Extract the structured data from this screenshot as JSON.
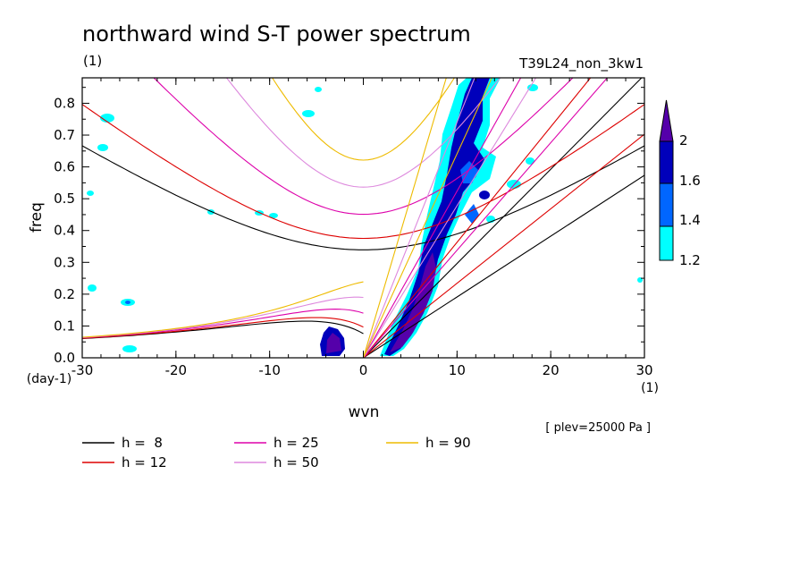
{
  "chart_data": {
    "type": "line",
    "title": "northward wind S-T power spectrum",
    "subtitle_left": "(1)",
    "subtitle_right": "T39L24_non_3kw1",
    "xlabel": "wvn",
    "ylabel": "freq",
    "x_unit": "(1)",
    "y_unit": "(day-1)",
    "xlim": [
      -30,
      30
    ],
    "ylim": [
      0,
      0.88
    ],
    "xticks": [
      -30,
      -20,
      -10,
      0,
      10,
      20,
      30
    ],
    "xtick_labels": [
      "-30",
      "-20",
      "-10",
      "0",
      "10",
      "20",
      "30"
    ],
    "yticks": [
      0,
      0.1,
      0.2,
      0.3,
      0.4,
      0.5,
      0.6,
      0.7,
      0.8
    ],
    "ytick_labels": [
      "0.0",
      "0.1",
      "0.2",
      "0.3",
      "0.4",
      "0.5",
      "0.6",
      "0.7",
      "0.8"
    ],
    "annotation": "[ plev=25000 Pa ]",
    "grid": false,
    "legend_placement": "bottom",
    "series": [
      {
        "name": "h =  8",
        "h": 8,
        "color": "#000000"
      },
      {
        "name": "h = 12",
        "h": 12,
        "color": "#dd0000"
      },
      {
        "name": "h = 25",
        "h": 25,
        "color": "#dd00aa"
      },
      {
        "name": "h = 50",
        "h": 50,
        "color": "#dd88dd"
      },
      {
        "name": "h = 90",
        "h": 90,
        "color": "#eebb00"
      }
    ],
    "dispersion_families": [
      "inertio-gravity (n=1)",
      "mixed Rossby-gravity",
      "Kelvin",
      "Kelvin (n=1)"
    ],
    "contour": {
      "levels": [
        1.2,
        1.4,
        1.6,
        2
      ],
      "level_labels": [
        "1.2",
        "1.4",
        "1.6",
        "2"
      ],
      "colors": [
        "#00ffff",
        "#0066ff",
        "#0000bb",
        "#5500aa"
      ],
      "colorbar_placement": "right",
      "regions": [
        {
          "x": 6,
          "y": 0.2,
          "value": 2.0
        },
        {
          "x": 8,
          "y": 0.5,
          "value": 1.8
        },
        {
          "x": 11,
          "y": 0.8,
          "value": 1.6
        },
        {
          "x": -3,
          "y": 0.05,
          "value": 1.8
        },
        {
          "x": -25,
          "y": 0.18,
          "value": 1.4
        }
      ]
    }
  }
}
